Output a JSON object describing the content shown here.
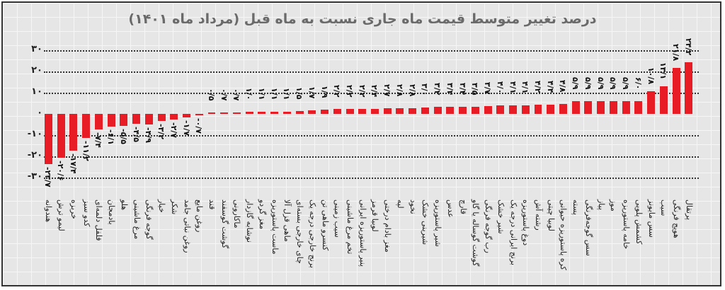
{
  "title": "درصد تغییر متوسط قیمت ماه جاری نسبت به ماه قبل (مرداد ماه ۱۴۰۱)",
  "y_ticks": [
    {
      "label": "۳۰",
      "value": 30
    },
    {
      "label": "۲۰",
      "value": 20
    },
    {
      "label": "۱۰",
      "value": 10
    },
    {
      "label": "۰",
      "value": 0
    },
    {
      "label": "-۱۰",
      "value": -10
    },
    {
      "label": "-۲۰",
      "value": -20
    },
    {
      "label": "-۳۰",
      "value": -30
    }
  ],
  "colors": {
    "bar": "#e81c24",
    "title": "#6a6a6a",
    "background": "#e6e6e6"
  },
  "chart_data": {
    "type": "bar",
    "title": "درصد تغییر متوسط قیمت ماه جاری نسبت به ماه قبل (مرداد ماه ۱۴۰۱)",
    "xlabel": "",
    "ylabel": "",
    "ylim": [
      -30,
      30
    ],
    "grid": true,
    "categories": [
      "هندوانه",
      "لیمو ترش",
      "خربزه",
      "کدو سبز",
      "فلفل دلمه‌ای",
      "بادمجان",
      "هلو",
      "مرغ ماشینی",
      "گوجه فرنگی",
      "خیار",
      "شکر",
      "روغن نباتی جامد",
      "روغن مایع",
      "قند",
      "گوشت گوسفند",
      "ماکارونی",
      "نوشابه گازدار",
      "مغز گردو",
      "ماست پاستوریزه",
      "ماهی قزل آلا",
      "چای خارجی بسته‌ای",
      "برنج خارجی درجه یک",
      "کنسرو ماهی تن",
      "سیب زمینی",
      "تخم مرغ ماشینی",
      "پنیر پاستوریزه ایرانی",
      "لوبیا قرمز",
      "مغز بادام درختی",
      "لپه",
      "نخود",
      "شیرینی خشک",
      "شیر پاستوریزه",
      "عدس",
      "قارچ",
      "گوشت گوساله یا گاو",
      "رب گوجه فرنگی",
      "شیر خشک",
      "برنج ایرانی درجه یک",
      "دوغ پاستوریزه",
      "رشته آش",
      "لوبیا چیتی",
      "کره پاستوریزه حیوانی",
      "پسته",
      "سس گوجه‌فرنگی",
      "پیاز",
      "موز",
      "خامه پاستوریزه",
      "کشمش پلویی",
      "سس مایونز",
      "سیب",
      "هویج فرنگی",
      "پرتقال"
    ],
    "values": [
      -23.7,
      -20.6,
      -17.4,
      -11.2,
      -7.4,
      -6.1,
      -5.5,
      -4.5,
      -4.9,
      -3.2,
      -2.7,
      -1.7,
      -0.7,
      0.5,
      0.7,
      0.7,
      1.0,
      1.1,
      1.1,
      1.1,
      1.5,
      1.7,
      1.9,
      2.2,
      2.2,
      2.2,
      2.4,
      2.7,
      2.8,
      2.8,
      3.0,
      3.2,
      3.4,
      3.4,
      3.5,
      3.7,
      4.0,
      4.1,
      4.1,
      4.2,
      4.4,
      4.8,
      5.9,
      5.9,
      5.9,
      5.9,
      5.9,
      6.0,
      10.8,
      13.1,
      21.8,
      24.2
    ],
    "labels": [
      "-۲۳/۷",
      "-۲۰/۶",
      "-۱۷/۴",
      "-۱۱/۲",
      "-۷/۴",
      "-۶/۱",
      "-۵/۵",
      "-۴/۵",
      "-۴/۹",
      "-۳/۲",
      "-۲/۷",
      "-۱/۷",
      "-۰/۷",
      "۰/۵",
      "۰/۷",
      "۰/۷",
      "۱/۰",
      "۱/۱",
      "۱/۱",
      "۱/۱",
      "۱/۵",
      "۱/۷",
      "۱/۹",
      "۲/۲",
      "۲/۲",
      "۲/۲",
      "۲/۴",
      "۲/۷",
      "۲/۸",
      "۲/۸",
      "۳/۰",
      "۳/۲",
      "۳/۴",
      "۳/۴",
      "۳/۵",
      "۳/۷",
      "۴/۰",
      "۴/۱",
      "۴/۱",
      "۴/۲",
      "۴/۴",
      "۴/۸",
      "۵/۹",
      "۵/۹",
      "۵/۹",
      "۵/۹",
      "۵/۹",
      "۶/۰",
      "۱۰/۸",
      "۱۳/۱",
      "۲۱/۸",
      "۲۴/۲"
    ]
  }
}
